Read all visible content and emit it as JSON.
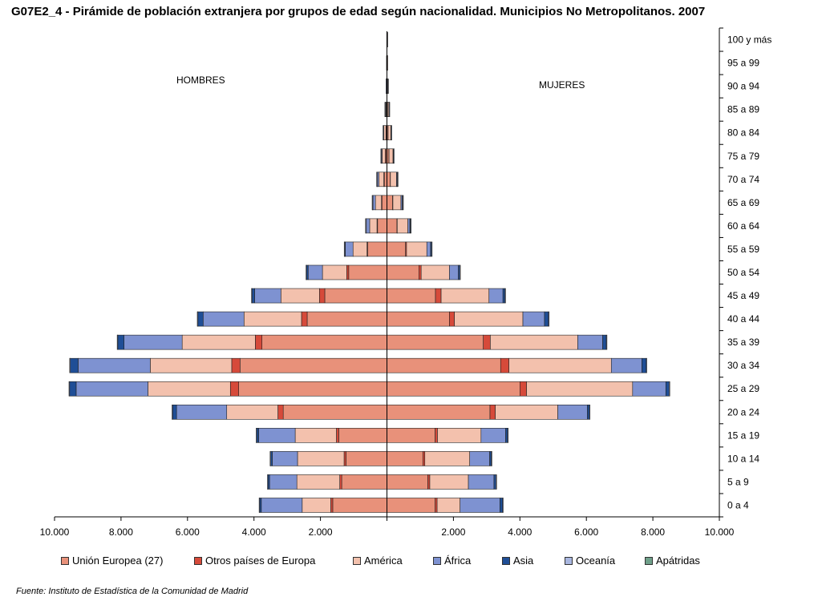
{
  "title": "G07E2_4 - Pirámide de población extranjera por grupos de edad según nacionalidad. Municipios No Metropolitanos. 2007",
  "source": "Fuente: Instituto de Estadística de la Comunidad de Madrid",
  "chart_data": {
    "type": "bar",
    "orientation": "horizontal-stacked-pyramid",
    "title": "G07E2_4 - Pirámide de población extranjera por grupos de edad según nacionalidad. Municipios No Metropolitanos. 2007",
    "left_label": "HOMBRES",
    "right_label": "MUJERES",
    "xlim": [
      -10000,
      10000
    ],
    "x_ticks": [
      -10000,
      -8000,
      -6000,
      -4000,
      -2000,
      0,
      2000,
      4000,
      6000,
      8000,
      10000
    ],
    "x_tick_labels": [
      "10.000",
      "8.000",
      "6.000",
      "4.000",
      "2.000",
      "",
      "2.000",
      "4.000",
      "6.000",
      "8.000",
      "10.000"
    ],
    "grid": false,
    "legend_position": "bottom",
    "categories": [
      "0 a 4",
      "5 a 9",
      "10 a 14",
      "15 a 19",
      "20 a 24",
      "25 a 29",
      "30 a 34",
      "35 a 39",
      "40 a 44",
      "45 a 49",
      "50 a 54",
      "55 a 59",
      "60 a 64",
      "65 a 69",
      "70 a 74",
      "75 a 79",
      "80 a 84",
      "85 a 89",
      "90 a 94",
      "95 a 99",
      "100 y más"
    ],
    "series": [
      {
        "name": "Unión Europea (27)",
        "color": "#E8917A",
        "men": [
          1630,
          1360,
          1230,
          1450,
          3120,
          4460,
          4420,
          3760,
          2400,
          1870,
          1150,
          580,
          290,
          160,
          90,
          50,
          30,
          15,
          8,
          4,
          2
        ],
        "women": [
          1450,
          1230,
          1080,
          1450,
          3100,
          4000,
          3420,
          2900,
          1880,
          1460,
          960,
          560,
          300,
          170,
          100,
          60,
          35,
          18,
          9,
          4,
          2
        ]
      },
      {
        "name": "Otros países de Europa",
        "color": "#D64A3A",
        "men": [
          60,
          60,
          60,
          70,
          160,
          250,
          250,
          200,
          170,
          160,
          60,
          20,
          10,
          5,
          5,
          3,
          2,
          1,
          0,
          0,
          0
        ],
        "women": [
          60,
          60,
          60,
          70,
          160,
          200,
          250,
          210,
          150,
          170,
          70,
          30,
          10,
          10,
          5,
          3,
          2,
          1,
          0,
          0,
          0
        ],
        "note": "thin separators"
      },
      {
        "name": "América",
        "color": "#F3C1AD",
        "men": [
          860,
          1290,
          1400,
          1240,
          1540,
          2480,
          2450,
          2200,
          1730,
          1160,
          730,
          420,
          220,
          180,
          150,
          90,
          60,
          30,
          12,
          6,
          3
        ],
        "women": [
          690,
          1160,
          1350,
          1310,
          1880,
          3190,
          3080,
          2630,
          2060,
          1440,
          850,
          610,
          320,
          240,
          180,
          120,
          80,
          40,
          15,
          6,
          3
        ]
      },
      {
        "name": "África",
        "color": "#7E92D1",
        "men": [
          1230,
          820,
          760,
          1100,
          1510,
          2160,
          2170,
          1750,
          1230,
          790,
          430,
          230,
          100,
          80,
          50,
          30,
          20,
          10,
          5,
          2,
          1
        ],
        "women": [
          1200,
          770,
          600,
          740,
          890,
          1000,
          920,
          750,
          650,
          420,
          270,
          110,
          60,
          40,
          20,
          10,
          5,
          2,
          0,
          0,
          0
        ]
      },
      {
        "name": "Asia",
        "color": "#1F4E96",
        "men": [
          60,
          60,
          60,
          70,
          130,
          210,
          250,
          200,
          170,
          90,
          60,
          30,
          20,
          15,
          10,
          5,
          3,
          2,
          1,
          0,
          0
        ],
        "women": [
          80,
          60,
          50,
          60,
          60,
          100,
          130,
          110,
          120,
          60,
          40,
          30,
          20,
          15,
          10,
          5,
          3,
          2,
          1,
          0,
          0
        ]
      },
      {
        "name": "Oceanía",
        "color": "#A9B7E0",
        "men": [
          5,
          5,
          5,
          5,
          5,
          5,
          5,
          5,
          5,
          5,
          5,
          5,
          5,
          5,
          5,
          5,
          2,
          2,
          1,
          0,
          0
        ],
        "women": [
          5,
          5,
          5,
          5,
          5,
          5,
          5,
          5,
          5,
          5,
          5,
          5,
          5,
          5,
          5,
          5,
          2,
          2,
          1,
          0,
          0
        ]
      },
      {
        "name": "Apátridas",
        "color": "#6FA08A",
        "men": [
          0,
          0,
          0,
          0,
          0,
          0,
          0,
          0,
          0,
          0,
          0,
          0,
          0,
          0,
          0,
          0,
          0,
          0,
          0,
          0,
          0
        ],
        "women": [
          0,
          0,
          0,
          0,
          0,
          0,
          0,
          0,
          0,
          0,
          0,
          0,
          0,
          0,
          0,
          0,
          0,
          0,
          0,
          0,
          0
        ]
      }
    ]
  }
}
